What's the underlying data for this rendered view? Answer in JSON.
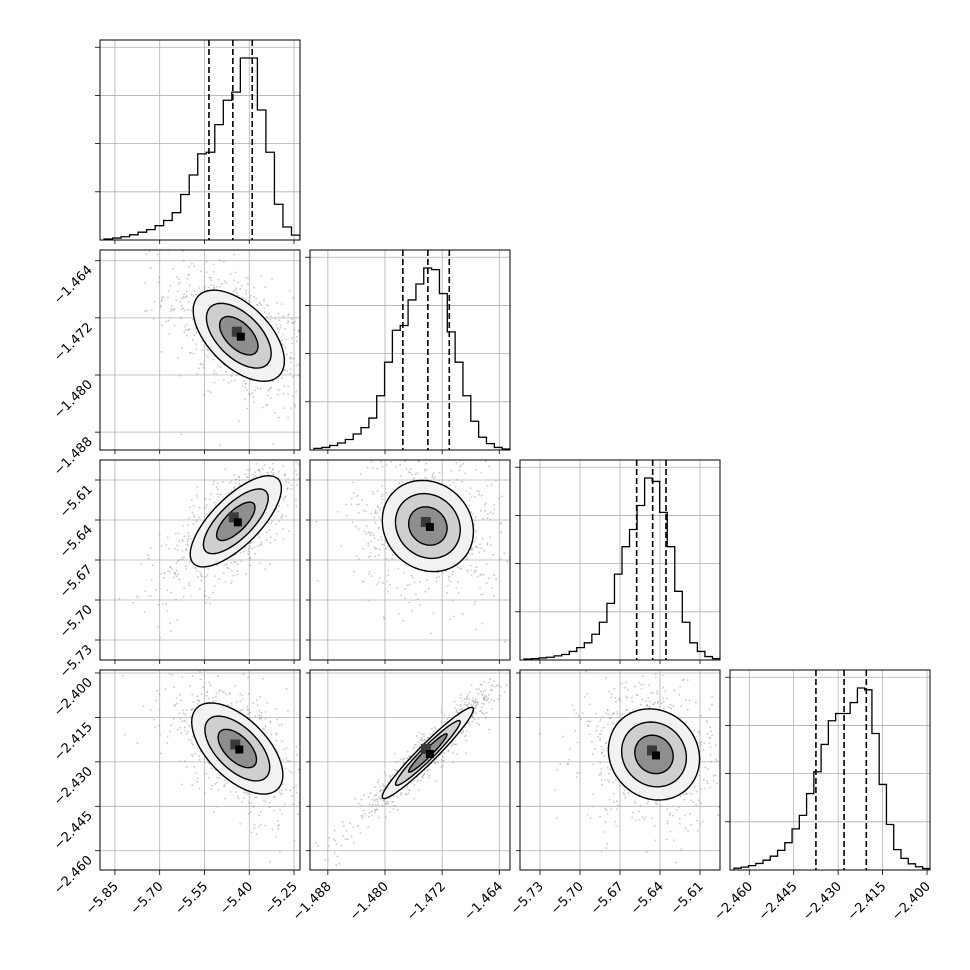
{
  "chart_data": {
    "type": "corner",
    "grid": true,
    "params": [
      {
        "range": [
          -5.9,
          -5.23
        ],
        "ticks": [
          "-5.85",
          "-5.70",
          "-5.55",
          "-5.40",
          "-5.25"
        ],
        "tick_values": [
          -5.85,
          -5.7,
          -5.55,
          -5.4,
          -5.25
        ],
        "quantiles": [
          -5.535,
          -5.455,
          -5.39
        ]
      },
      {
        "range": [
          -1.4905,
          -1.4625
        ],
        "ticks": [
          "-1.488",
          "-1.480",
          "-1.472",
          "-1.464"
        ],
        "tick_values": [
          -1.488,
          -1.48,
          -1.472,
          -1.464
        ],
        "quantiles": [
          -1.4775,
          -1.474,
          -1.471
        ]
      },
      {
        "range": [
          -5.745,
          -5.595
        ],
        "ticks": [
          "-5.73",
          "-5.70",
          "-5.67",
          "-5.64",
          "-5.61"
        ],
        "tick_values": [
          -5.73,
          -5.7,
          -5.67,
          -5.64,
          -5.61
        ],
        "quantiles": [
          -5.6575,
          -5.6455,
          -5.6355
        ]
      },
      {
        "range": [
          -2.4665,
          -2.399
        ],
        "ticks": [
          "-2.460",
          "-2.445",
          "-2.430",
          "-2.415",
          "-2.400"
        ],
        "tick_values": [
          -2.46,
          -2.445,
          -2.43,
          -2.415,
          -2.4
        ],
        "quantiles": [
          -2.4375,
          -2.428,
          -2.4205
        ]
      }
    ],
    "histograms": [
      {
        "param": 0,
        "counts": [
          0.3,
          0.6,
          1,
          1.6,
          2.4,
          3.2,
          4.4,
          6,
          8.4,
          14,
          20,
          26.5,
          27,
          35.5,
          43,
          45.5,
          56,
          56,
          40,
          27,
          11,
          4,
          1.5
        ]
      },
      {
        "param": 1,
        "counts": [
          0.5,
          0.8,
          1.4,
          2.2,
          3.3,
          5,
          7,
          10,
          17,
          27.5,
          37.5,
          39,
          47,
          52,
          57,
          56.5,
          49,
          37,
          27.5,
          17,
          9,
          4,
          2,
          0.8,
          0.3
        ]
      },
      {
        "param": 2,
        "counts": [
          0.3,
          0.4,
          0.6,
          0.8,
          1.2,
          1.6,
          2.5,
          3.6,
          5,
          7.5,
          11,
          16.5,
          25,
          33,
          38,
          45,
          53,
          52,
          43,
          33,
          20,
          11,
          5,
          2.5,
          1,
          0.4
        ]
      },
      {
        "param": 3,
        "counts": [
          0.5,
          0.8,
          1.2,
          1.8,
          2.7,
          3.8,
          5.4,
          7.5,
          11.3,
          15,
          21,
          27,
          34.5,
          41,
          43,
          43,
          46,
          50,
          49.5,
          37.5,
          23.5,
          12.5,
          5.6,
          3.2,
          1.7,
          0.9,
          0.4
        ]
      }
    ],
    "pairs": [
      {
        "x": 0,
        "y": 1,
        "center": [
          -5.435,
          -1.4745
        ],
        "rho": -0.55
      },
      {
        "x": 0,
        "y": 2,
        "center": [
          -5.445,
          -5.641
        ],
        "rho": 0.72
      },
      {
        "x": 1,
        "y": 2,
        "center": [
          -1.474,
          -5.6445
        ],
        "rho": -0.12
      },
      {
        "x": 0,
        "y": 3,
        "center": [
          -5.44,
          -2.4255
        ],
        "rho": -0.58
      },
      {
        "x": 1,
        "y": 3,
        "center": [
          -1.474,
          -2.427
        ],
        "rho": 0.96
      },
      {
        "x": 2,
        "y": 3,
        "center": [
          -5.6445,
          -2.4275
        ],
        "rho": -0.1
      }
    ]
  }
}
